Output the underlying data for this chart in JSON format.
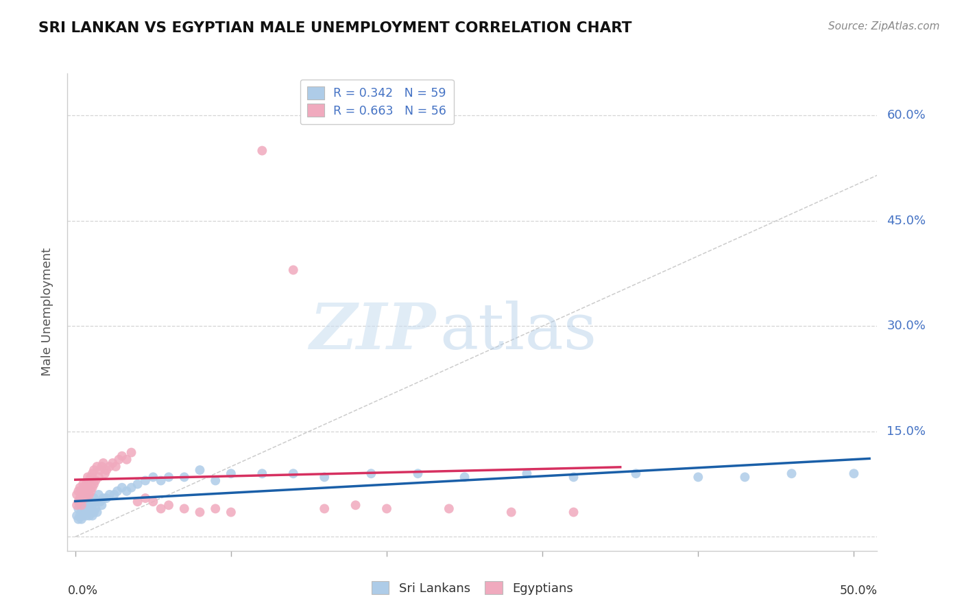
{
  "title": "SRI LANKAN VS EGYPTIAN MALE UNEMPLOYMENT CORRELATION CHART",
  "source": "Source: ZipAtlas.com",
  "ylabel": "Male Unemployment",
  "x_lim": [
    -0.005,
    0.515
  ],
  "y_lim": [
    -0.02,
    0.66
  ],
  "y_ticks": [
    0.0,
    0.15,
    0.3,
    0.45,
    0.6
  ],
  "y_tick_labels": [
    "",
    "15.0%",
    "30.0%",
    "45.0%",
    "60.0%"
  ],
  "legend_r1": "R = 0.342",
  "legend_n1": "N = 59",
  "legend_r2": "R = 0.663",
  "legend_n2": "N = 56",
  "color_sri": "#aecce8",
  "color_egypt": "#f0aabe",
  "line_sri": "#1a5fa8",
  "line_egypt": "#d63060",
  "ref_line_color": "#cccccc",
  "watermark_zip": "ZIP",
  "watermark_atlas": "atlas",
  "sri_x": [
    0.001,
    0.002,
    0.002,
    0.003,
    0.003,
    0.004,
    0.004,
    0.005,
    0.005,
    0.006,
    0.006,
    0.007,
    0.007,
    0.008,
    0.008,
    0.009,
    0.009,
    0.01,
    0.01,
    0.011,
    0.011,
    0.012,
    0.012,
    0.013,
    0.013,
    0.014,
    0.015,
    0.016,
    0.017,
    0.018,
    0.02,
    0.022,
    0.025,
    0.027,
    0.03,
    0.033,
    0.036,
    0.04,
    0.045,
    0.05,
    0.055,
    0.06,
    0.07,
    0.08,
    0.09,
    0.1,
    0.12,
    0.14,
    0.16,
    0.19,
    0.22,
    0.25,
    0.29,
    0.32,
    0.36,
    0.4,
    0.43,
    0.46,
    0.5
  ],
  "sri_y": [
    0.03,
    0.025,
    0.04,
    0.03,
    0.045,
    0.025,
    0.04,
    0.03,
    0.045,
    0.035,
    0.05,
    0.03,
    0.045,
    0.04,
    0.055,
    0.03,
    0.045,
    0.035,
    0.05,
    0.03,
    0.045,
    0.035,
    0.055,
    0.04,
    0.05,
    0.035,
    0.06,
    0.05,
    0.045,
    0.055,
    0.055,
    0.06,
    0.06,
    0.065,
    0.07,
    0.065,
    0.07,
    0.075,
    0.08,
    0.085,
    0.08,
    0.085,
    0.085,
    0.095,
    0.08,
    0.09,
    0.09,
    0.09,
    0.085,
    0.09,
    0.09,
    0.085,
    0.09,
    0.085,
    0.09,
    0.085,
    0.085,
    0.09,
    0.09
  ],
  "egy_x": [
    0.001,
    0.001,
    0.002,
    0.002,
    0.003,
    0.003,
    0.004,
    0.004,
    0.005,
    0.005,
    0.006,
    0.006,
    0.007,
    0.007,
    0.008,
    0.008,
    0.009,
    0.009,
    0.01,
    0.01,
    0.011,
    0.011,
    0.012,
    0.012,
    0.013,
    0.014,
    0.015,
    0.016,
    0.017,
    0.018,
    0.019,
    0.02,
    0.022,
    0.024,
    0.026,
    0.028,
    0.03,
    0.033,
    0.036,
    0.04,
    0.045,
    0.05,
    0.055,
    0.06,
    0.07,
    0.08,
    0.09,
    0.1,
    0.12,
    0.14,
    0.16,
    0.18,
    0.2,
    0.24,
    0.28,
    0.32
  ],
  "egy_y": [
    0.045,
    0.06,
    0.05,
    0.065,
    0.055,
    0.07,
    0.045,
    0.065,
    0.06,
    0.075,
    0.055,
    0.07,
    0.06,
    0.075,
    0.07,
    0.085,
    0.06,
    0.08,
    0.065,
    0.085,
    0.07,
    0.09,
    0.075,
    0.095,
    0.08,
    0.1,
    0.085,
    0.095,
    0.1,
    0.105,
    0.09,
    0.095,
    0.1,
    0.105,
    0.1,
    0.11,
    0.115,
    0.11,
    0.12,
    0.05,
    0.055,
    0.05,
    0.04,
    0.045,
    0.04,
    0.035,
    0.04,
    0.035,
    0.55,
    0.38,
    0.04,
    0.045,
    0.04,
    0.04,
    0.035,
    0.035
  ]
}
